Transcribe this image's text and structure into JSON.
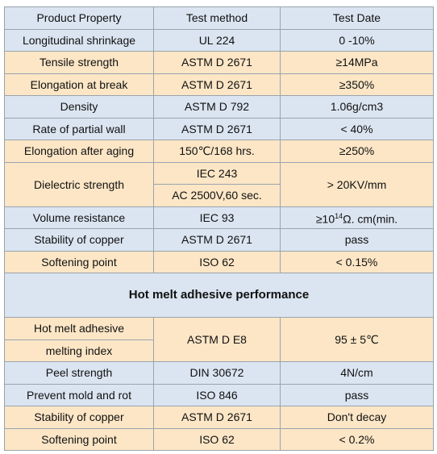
{
  "table": {
    "header": [
      "Product Property",
      "Test method",
      "Test Date"
    ],
    "rows": [
      [
        "Longitudinal shrinkage",
        "UL 224",
        "0 -10%"
      ],
      [
        "Tensile strength",
        "ASTM D 2671",
        "≥14MPa"
      ],
      [
        "Elongation at break",
        "ASTM D 2671",
        "≥350%"
      ],
      [
        "Density",
        "ASTM D 792",
        "1.06g/cm3"
      ],
      [
        "Rate of partial wall",
        "ASTM D 2671",
        "< 40%"
      ],
      [
        "Elongation after aging",
        "150℃/168 hrs.",
        "≥250%"
      ],
      [
        "Dielectric strength",
        [
          "IEC 243",
          "AC 2500V,60 sec."
        ],
        "> 20KV/mm"
      ],
      [
        "Volume resistance",
        "IEC 93",
        [
          "≥10",
          "14",
          "Ω. cm(min."
        ]
      ],
      [
        "Stability of copper",
        "ASTM D 2671",
        "pass"
      ],
      [
        "Softening point",
        "ISO 62",
        "< 0.15%"
      ]
    ],
    "section_title": "Hot melt adhesive performance",
    "section_rows": [
      [
        [
          "Hot melt adhesive",
          "melting index"
        ],
        "ASTM D E8",
        "95 ± 5℃"
      ],
      [
        "Peel strength",
        "DIN 30672",
        "4N/cm"
      ],
      [
        "Prevent mold and rot",
        "ISO 846",
        "pass"
      ],
      [
        "Stability of copper",
        "ASTM D 2671",
        "Don't decay"
      ],
      [
        "Softening point",
        "ISO 62",
        "< 0.2%"
      ]
    ]
  }
}
